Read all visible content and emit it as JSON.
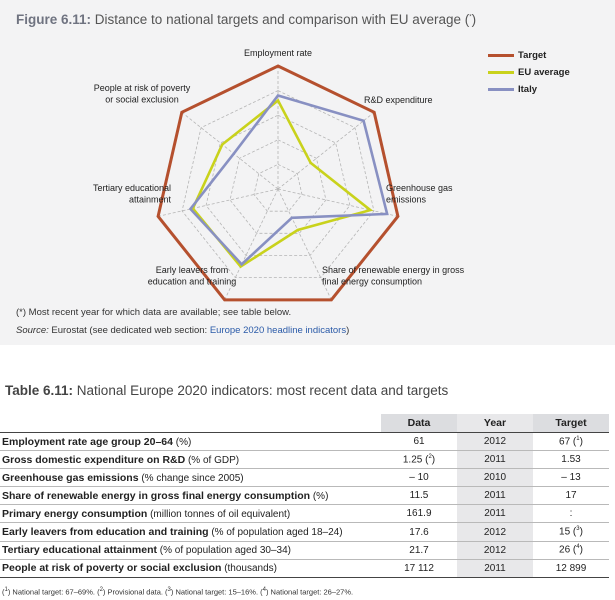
{
  "figure": {
    "title_num": "Figure 6.11:",
    "title_text": " Distance to national targets and comparison with EU average (",
    "title_sup": "*",
    "title_end": ")",
    "footnote_mark": "(*)",
    "footnote_text": " Most recent year for which data are available; see table below.",
    "source_label": "Source:",
    "source_text": " Eurostat (see dedicated web section: ",
    "source_link": "Europe 2020 headline indicators",
    "source_end": ")"
  },
  "chart_data": {
    "type": "radar",
    "axes": [
      [
        "Employment rate"
      ],
      [
        "R&D expenditure"
      ],
      [
        "Greenhouse gas",
        "emissions"
      ],
      [
        "Share of renewable energy in gross",
        "final energy consumption"
      ],
      [
        "Early leavers from",
        "education and training"
      ],
      [
        "Tertiary educational",
        "attainment"
      ],
      [
        "People at risk of poverty",
        "or social exclusion"
      ]
    ],
    "rings": 5,
    "series": [
      {
        "name": "Target",
        "color": "#b5502e",
        "values": [
          1,
          1,
          1,
          1,
          1,
          1,
          1
        ]
      },
      {
        "name": "EU average",
        "color": "#c9d21c",
        "values": [
          0.72,
          0.34,
          0.77,
          0.37,
          0.7,
          0.71,
          0.58
        ]
      },
      {
        "name": "Italy",
        "color": "#8890c2",
        "values": [
          0.76,
          0.89,
          0.91,
          0.26,
          0.68,
          0.73,
          0.46
        ]
      }
    ]
  },
  "table": {
    "title_num": "Table 6.11:",
    "title_text": " National Europe 2020 indicators: most recent data and targets",
    "headers": {
      "data": "Data",
      "year": "Year",
      "target": "Target"
    },
    "rows": [
      {
        "label": "Employment rate age group 20–64",
        "unit": " (%)",
        "data": "61",
        "data_sup": "",
        "year": "2012",
        "target": "67 (",
        "target_sup": "1",
        "target_end": ")"
      },
      {
        "label": "Gross domestic expenditure on R&D",
        "unit": " (% of GDP)",
        "data": "1.25 (",
        "data_sup": "2",
        "data_end": ")",
        "year": "2011",
        "target": "1.53",
        "target_sup": "",
        "target_end": ""
      },
      {
        "label": "Greenhouse gas emissions",
        "unit": " (% change since 2005)",
        "data": "– 10",
        "data_sup": "",
        "year": "2010",
        "target": "– 13",
        "target_sup": "",
        "target_end": ""
      },
      {
        "label": "Share of renewable energy in gross final energy consumption",
        "unit": " (%)",
        "data": "11.5",
        "data_sup": "",
        "year": "2011",
        "target": "17",
        "target_sup": "",
        "target_end": ""
      },
      {
        "label": "Primary energy consumption",
        "unit": " (million tonnes of oil equivalent)",
        "data": "161.9",
        "data_sup": "",
        "year": "2011",
        "target": ":",
        "target_sup": "",
        "target_end": ""
      },
      {
        "label": "Early leavers from education and training",
        "unit": " (% of population aged 18–24)",
        "data": "17.6",
        "data_sup": "",
        "year": "2012",
        "target": "15 (",
        "target_sup": "3",
        "target_end": ")"
      },
      {
        "label": "Tertiary educational attainment",
        "unit": " (% of population aged 30–34)",
        "data": "21.7",
        "data_sup": "",
        "year": "2012",
        "target": "26 (",
        "target_sup": "4",
        "target_end": ")"
      },
      {
        "label": "People at risk of poverty or social exclusion",
        "unit": " (thousands)",
        "data": "17 112",
        "data_sup": "",
        "year": "2011",
        "target": "12 899",
        "target_sup": "",
        "target_end": ""
      }
    ],
    "footnotes": [
      {
        "mark": "1",
        "text": " National target: 67–69%. "
      },
      {
        "mark": "2",
        "text": " Provisional data. "
      },
      {
        "mark": "3",
        "text": " National target: 15–16%. "
      },
      {
        "mark": "4",
        "text": " National target: 26–27%."
      }
    ]
  }
}
